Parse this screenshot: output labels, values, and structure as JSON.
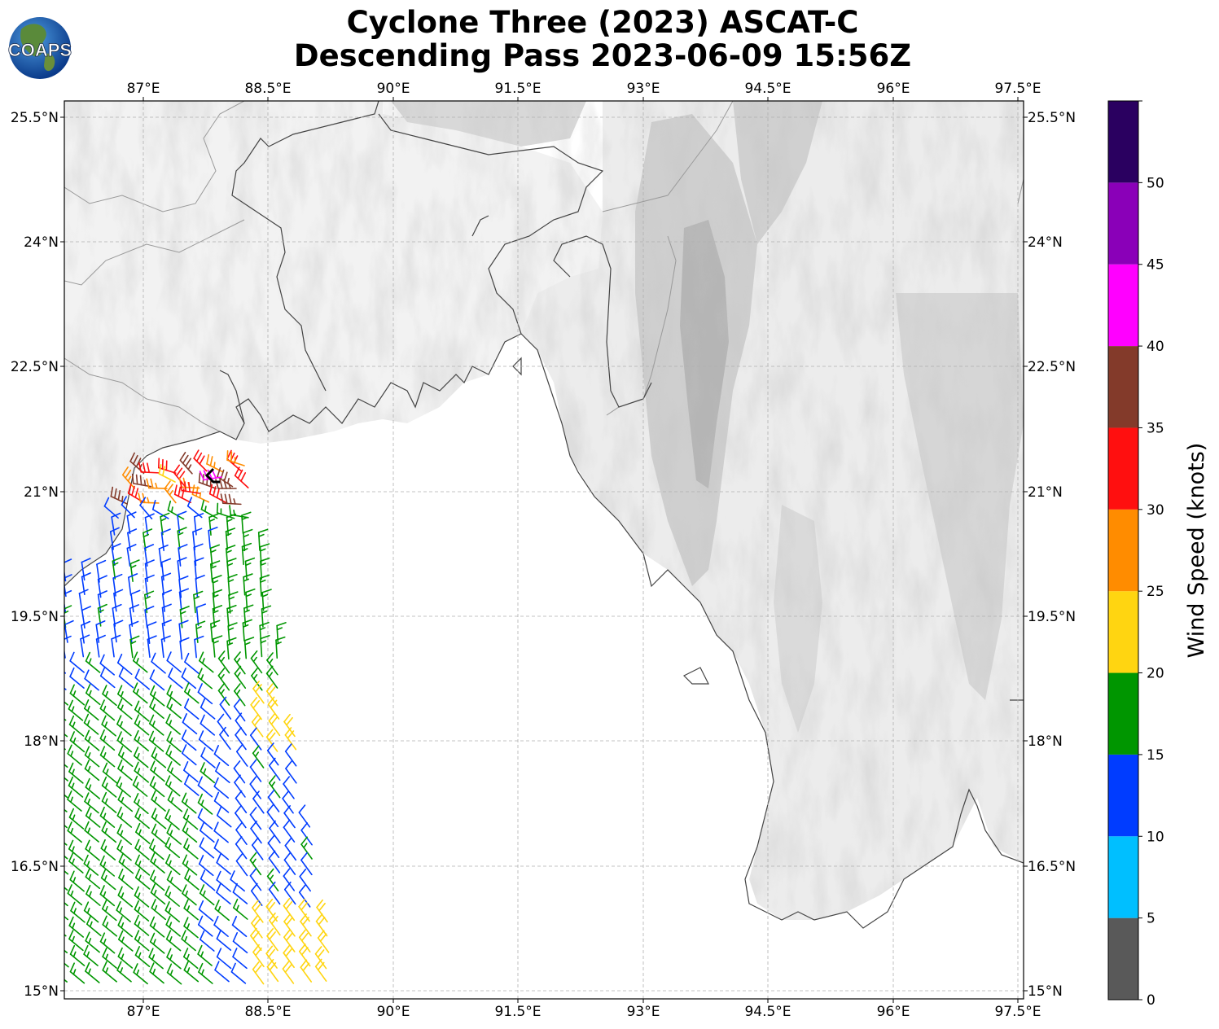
{
  "title": {
    "line1": "Cyclone Three (2023) ASCAT-C",
    "line2": "Descending Pass 2023-06-09 15:56Z"
  },
  "logo": {
    "text": "COAPS",
    "icon": "globe-icon"
  },
  "map": {
    "lon_ticks": [
      "87°E",
      "88.5°E",
      "90°E",
      "91.5°E",
      "93°E",
      "94.5°E",
      "96°E",
      "97.5°E"
    ],
    "lat_ticks": [
      "25.5°N",
      "24°N",
      "22.5°N",
      "21°N",
      "19.5°N",
      "18°N",
      "16.5°N",
      "15°N"
    ],
    "lon_range": [
      86.0,
      97.5
    ],
    "lat_range": [
      15.0,
      25.7
    ],
    "gridlines": true,
    "background": "grayscale terrain",
    "coastline_color": "#444444"
  },
  "colorbar": {
    "label": "Wind Speed (knots)",
    "tick_labels": [
      "0",
      "5",
      "10",
      "15",
      "20",
      "25",
      "30",
      "35",
      "40",
      "45",
      "50"
    ],
    "bins": [
      {
        "min": 0,
        "max": 5,
        "color": "#595959"
      },
      {
        "min": 5,
        "max": 10,
        "color": "#00bfff"
      },
      {
        "min": 10,
        "max": 15,
        "color": "#003cff"
      },
      {
        "min": 15,
        "max": 20,
        "color": "#009600"
      },
      {
        "min": 20,
        "max": 25,
        "color": "#ffd511"
      },
      {
        "min": 25,
        "max": 30,
        "color": "#ff8c00"
      },
      {
        "min": 30,
        "max": 35,
        "color": "#ff0f0f"
      },
      {
        "min": 35,
        "max": 40,
        "color": "#833a2a"
      },
      {
        "min": 40,
        "max": 45,
        "color": "#ff00ff"
      },
      {
        "min": 45,
        "max": 50,
        "color": "#8a00b8"
      },
      {
        "min": 50,
        "max": 55,
        "color": "#2a0060"
      }
    ]
  },
  "storm_center": {
    "lon": 87.8,
    "lat": 21.2,
    "color": "#000000"
  }
}
